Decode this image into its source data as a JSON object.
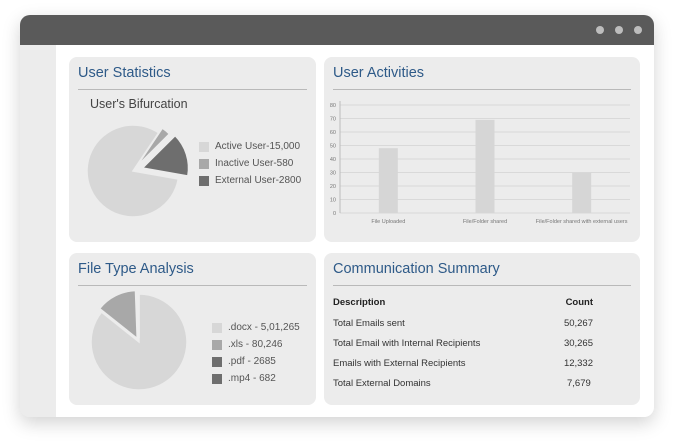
{
  "window": {
    "controls": [
      "dot",
      "dot",
      "dot"
    ]
  },
  "user_statistics": {
    "title": "User Statistics",
    "subtitle": "User's Bifurcation",
    "legend": [
      {
        "label": "Active User-15,000",
        "color": "#d7d7d7"
      },
      {
        "label": "Inactive User-580",
        "color": "#a8a8a8"
      },
      {
        "label": "External User-2800",
        "color": "#6e6e6e"
      }
    ]
  },
  "user_activities": {
    "title": "User Activities"
  },
  "file_type_analysis": {
    "title": "File Type Analysis",
    "legend": [
      {
        "label": ".docx - 5,01,265",
        "color": "#d7d7d7"
      },
      {
        "label": ".xls - 80,246",
        "color": "#a8a8a8"
      },
      {
        "label": ".pdf - 2685",
        "color": "#6e6e6e"
      },
      {
        "label": ".mp4 - 682",
        "color": "#6e6e6e"
      }
    ]
  },
  "communication_summary": {
    "title": "Communication Summary",
    "header": {
      "description": "Description",
      "count": "Count"
    },
    "rows": [
      {
        "description": "Total Emails sent",
        "count": "50,267"
      },
      {
        "description": "Total Email with Internal Recipients",
        "count": "30,265"
      },
      {
        "description": "Emails with External Recipients",
        "count": "12,332"
      },
      {
        "description": "Total External Domains",
        "count": "7,679"
      }
    ]
  },
  "chart_data": [
    {
      "type": "pie",
      "title": "User's Bifurcation",
      "categories": [
        "Active User",
        "Inactive User",
        "External User"
      ],
      "values": [
        15000,
        580,
        2800
      ],
      "colors": [
        "#d7d7d7",
        "#a8a8a8",
        "#6e6e6e"
      ]
    },
    {
      "type": "bar",
      "title": "User Activities",
      "categories": [
        "File Uploaded",
        "File/Folder shared",
        "File/Folder shared with external users"
      ],
      "values": [
        48,
        69,
        30
      ],
      "ylim": [
        0,
        80
      ],
      "yticks": [
        0,
        10,
        20,
        30,
        40,
        50,
        60,
        70,
        80
      ],
      "grid": true,
      "bar_color": "#d6d6d6"
    },
    {
      "type": "pie",
      "title": "File Type Analysis",
      "categories": [
        ".docx",
        ".xls",
        ".pdf",
        ".mp4"
      ],
      "values": [
        501265,
        80246,
        2685,
        682
      ],
      "colors": [
        "#d7d7d7",
        "#a8a8a8",
        "#6e6e6e",
        "#4e4e4e"
      ]
    }
  ]
}
